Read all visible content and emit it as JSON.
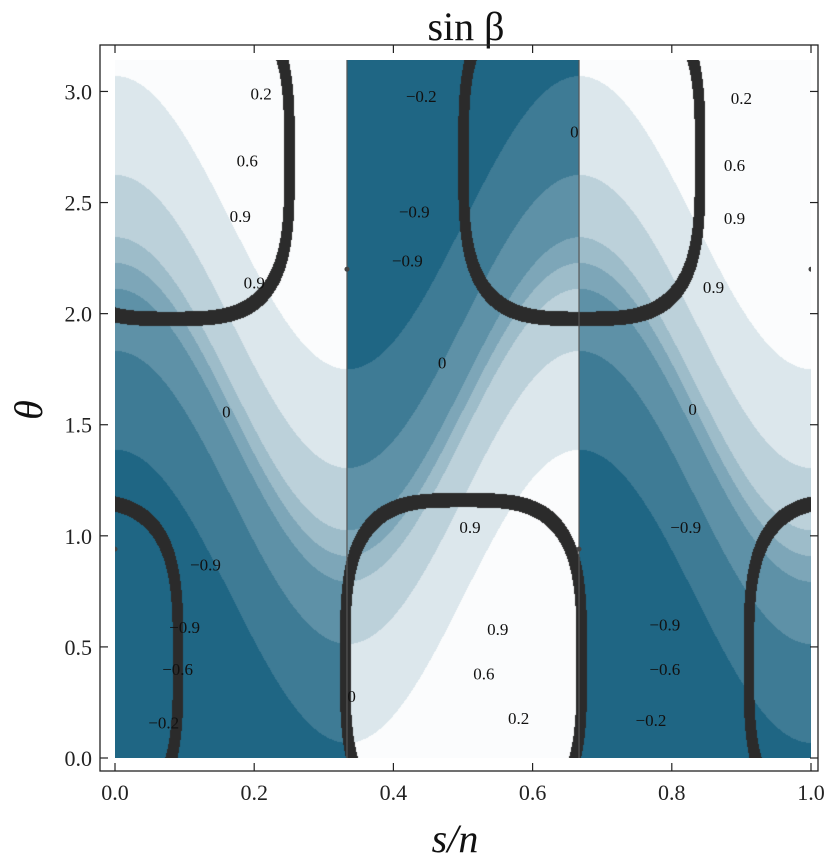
{
  "chart_data": {
    "type": "contour",
    "title": "sin β",
    "xlabel": "s/n",
    "ylabel": "θ",
    "xlim": [
      0.0,
      1.0
    ],
    "ylim": [
      0.0,
      3.1416
    ],
    "x_ticks": [
      "0.0",
      "0.2",
      "0.4",
      "0.6",
      "0.8",
      "1.0"
    ],
    "y_ticks": [
      "0.0",
      "0.5",
      "1.0",
      "1.5",
      "2.0",
      "2.5",
      "3.0"
    ],
    "contour_levels": [
      -0.9,
      -0.6,
      -0.2,
      0,
      0.2,
      0.6,
      0.9
    ],
    "color_low": "#1f6684",
    "color_high": "#fbfcfd",
    "singular_band_color": "#2b2b2b",
    "vertical_lines_x": [
      0.3333,
      0.6667
    ],
    "singular_points": [
      {
        "x": 0.0,
        "y": 0.94
      },
      {
        "x": 0.3333,
        "y": 2.2
      },
      {
        "x": 0.6667,
        "y": 0.94
      },
      {
        "x": 1.0,
        "y": 2.2
      }
    ],
    "contour_labels": [
      {
        "text": "0.2",
        "x": 0.21,
        "y": 2.99
      },
      {
        "text": "0.6",
        "x": 0.19,
        "y": 2.69
      },
      {
        "text": "0.9",
        "x": 0.18,
        "y": 2.44
      },
      {
        "text": "0.9",
        "x": 0.2,
        "y": 2.14
      },
      {
        "text": "0",
        "x": 0.16,
        "y": 1.56
      },
      {
        "text": "−0.9",
        "x": 0.13,
        "y": 0.87
      },
      {
        "text": "−0.9",
        "x": 0.1,
        "y": 0.59
      },
      {
        "text": "−0.6",
        "x": 0.09,
        "y": 0.4
      },
      {
        "text": "−0.2",
        "x": 0.07,
        "y": 0.16
      },
      {
        "text": "−0.2",
        "x": 0.44,
        "y": 2.98
      },
      {
        "text": "−0.9",
        "x": 0.43,
        "y": 2.46
      },
      {
        "text": "−0.9",
        "x": 0.42,
        "y": 2.24
      },
      {
        "text": "0",
        "x": 0.47,
        "y": 1.78
      },
      {
        "text": "0.9",
        "x": 0.51,
        "y": 1.04
      },
      {
        "text": "0.9",
        "x": 0.55,
        "y": 0.58
      },
      {
        "text": "0.6",
        "x": 0.53,
        "y": 0.38
      },
      {
        "text": "0.2",
        "x": 0.58,
        "y": 0.18
      },
      {
        "text": "0",
        "x": 0.34,
        "y": 0.28
      },
      {
        "text": "0",
        "x": 0.66,
        "y": 2.82
      },
      {
        "text": "0.2",
        "x": 0.9,
        "y": 2.97
      },
      {
        "text": "0.6",
        "x": 0.89,
        "y": 2.67
      },
      {
        "text": "0.9",
        "x": 0.89,
        "y": 2.43
      },
      {
        "text": "0.9",
        "x": 0.86,
        "y": 2.12
      },
      {
        "text": "0",
        "x": 0.83,
        "y": 1.57
      },
      {
        "text": "−0.9",
        "x": 0.82,
        "y": 1.04
      },
      {
        "text": "−0.9",
        "x": 0.79,
        "y": 0.6
      },
      {
        "text": "−0.6",
        "x": 0.79,
        "y": 0.4
      },
      {
        "text": "−0.2",
        "x": 0.77,
        "y": 0.17
      }
    ]
  }
}
